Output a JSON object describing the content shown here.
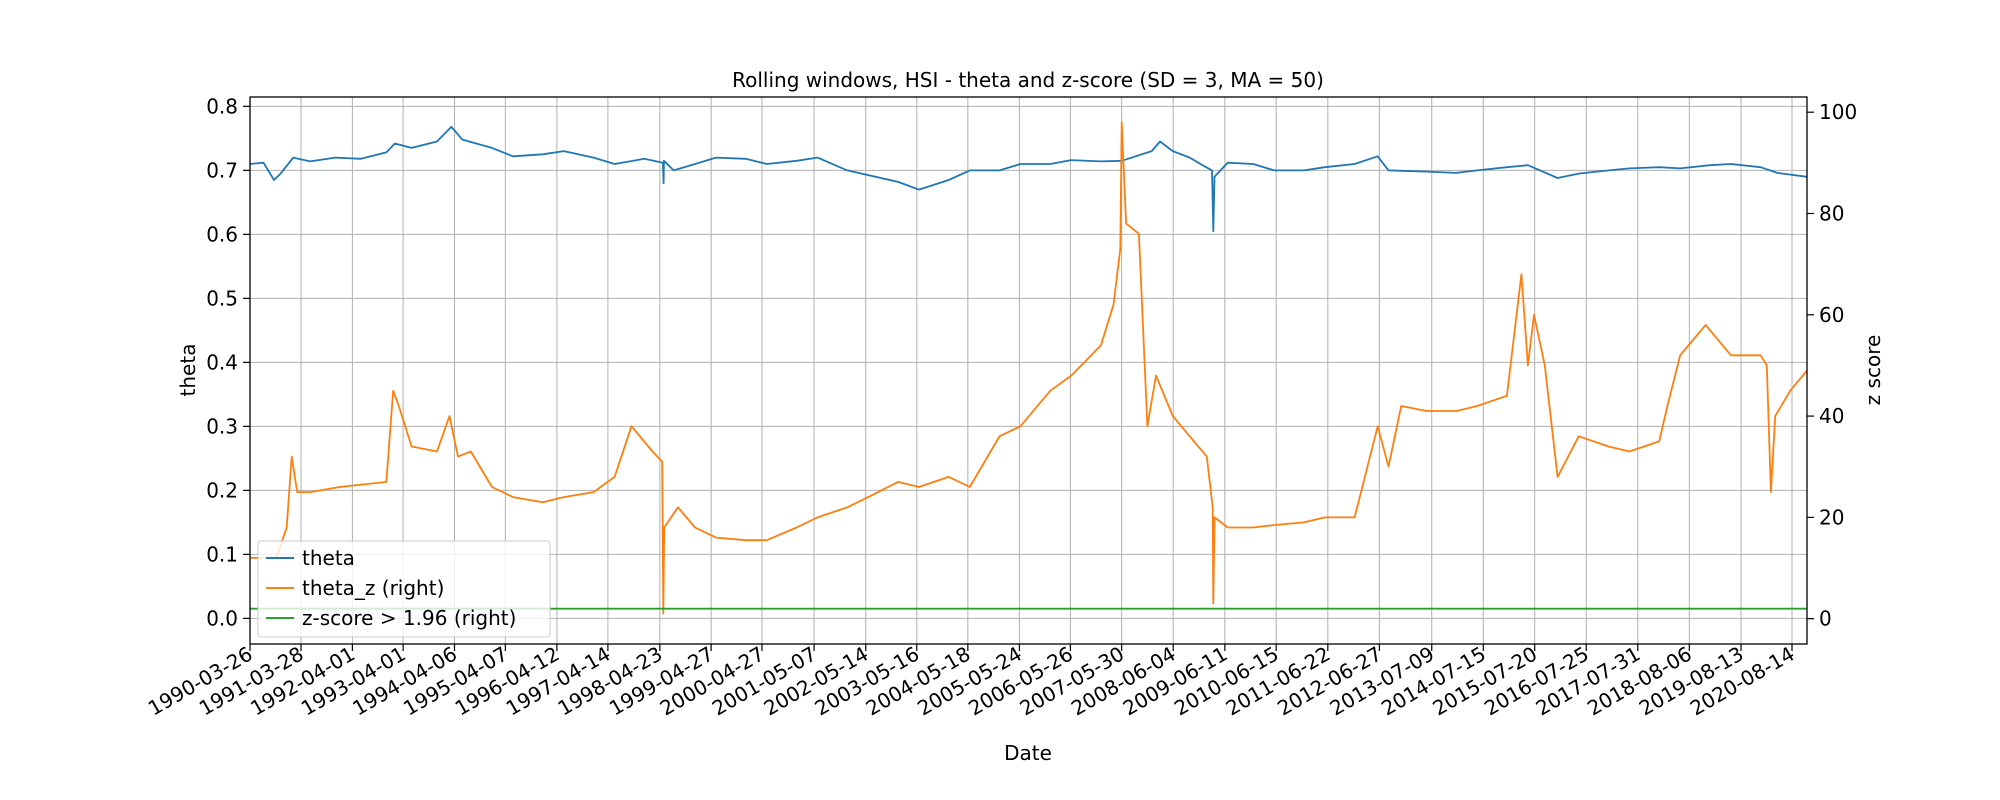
{
  "chart_data": {
    "type": "line",
    "title": "Rolling windows, HSI - theta and z-score (SD = 3, MA = 50)",
    "xlabel": "Date",
    "ylabel": "theta",
    "y2label": "z score",
    "xlim": [
      "1990-03-26",
      "2020-11-30"
    ],
    "ylim": [
      -0.04,
      0.8146
    ],
    "y2lim": [
      -5,
      103
    ],
    "yticks": [
      "0.0",
      "0.1",
      "0.2",
      "0.3",
      "0.4",
      "0.5",
      "0.6",
      "0.7",
      "0.8"
    ],
    "y2ticks": [
      "0",
      "20",
      "40",
      "60",
      "80",
      "100"
    ],
    "xticks": [
      "1990-03-26",
      "1991-03-28",
      "1992-04-01",
      "1993-04-01",
      "1994-04-06",
      "1995-04-07",
      "1996-04-12",
      "1997-04-14",
      "1998-04-23",
      "1999-04-27",
      "2000-04-27",
      "2001-05-07",
      "2002-05-14",
      "2003-05-16",
      "2004-05-18",
      "2005-05-24",
      "2006-05-26",
      "2007-05-30",
      "2008-06-04",
      "2009-06-11",
      "2010-06-15",
      "2011-06-22",
      "2012-06-27",
      "2013-07-09",
      "2014-07-15",
      "2015-07-20",
      "2016-07-25",
      "2017-07-31",
      "2018-08-06",
      "2019-08-13",
      "2020-08-14"
    ],
    "grid": true,
    "legend_position": "lower-left",
    "series": [
      {
        "name": "theta",
        "axis": "left",
        "color": "#1f77b4",
        "points": [
          [
            "1990-03-26",
            0.71
          ],
          [
            "1990-07-01",
            0.712
          ],
          [
            "1990-09-15",
            0.685
          ],
          [
            "1990-11-01",
            0.695
          ],
          [
            "1991-02-01",
            0.72
          ],
          [
            "1991-06-01",
            0.714
          ],
          [
            "1991-12-01",
            0.72
          ],
          [
            "1992-06-01",
            0.718
          ],
          [
            "1992-12-01",
            0.728
          ],
          [
            "1993-02-01",
            0.742
          ],
          [
            "1993-06-01",
            0.735
          ],
          [
            "1993-12-01",
            0.745
          ],
          [
            "1994-03-15",
            0.768
          ],
          [
            "1994-06-01",
            0.748
          ],
          [
            "1995-01-01",
            0.735
          ],
          [
            "1995-06-01",
            0.722
          ],
          [
            "1996-01-01",
            0.725
          ],
          [
            "1996-06-01",
            0.73
          ],
          [
            "1997-01-01",
            0.72
          ],
          [
            "1997-06-01",
            0.71
          ],
          [
            "1998-01-01",
            0.718
          ],
          [
            "1998-05-15",
            0.712
          ],
          [
            "1998-05-20",
            0.68
          ],
          [
            "1998-05-22",
            0.715
          ],
          [
            "1998-08-01",
            0.7
          ],
          [
            "1999-01-01",
            0.71
          ],
          [
            "1999-06-01",
            0.72
          ],
          [
            "2000-01-01",
            0.718
          ],
          [
            "2000-06-01",
            0.71
          ],
          [
            "2001-01-01",
            0.715
          ],
          [
            "2001-06-01",
            0.72
          ],
          [
            "2002-01-01",
            0.7
          ],
          [
            "2003-01-01",
            0.682
          ],
          [
            "2003-06-01",
            0.67
          ],
          [
            "2004-01-01",
            0.685
          ],
          [
            "2004-06-01",
            0.7
          ],
          [
            "2005-01-01",
            0.7
          ],
          [
            "2005-06-01",
            0.71
          ],
          [
            "2006-01-01",
            0.71
          ],
          [
            "2006-06-01",
            0.716
          ],
          [
            "2007-01-01",
            0.714
          ],
          [
            "2007-06-01",
            0.715
          ],
          [
            "2008-01-01",
            0.73
          ],
          [
            "2008-03-01",
            0.745
          ],
          [
            "2008-06-01",
            0.73
          ],
          [
            "2008-10-01",
            0.72
          ],
          [
            "2009-01-01",
            0.708
          ],
          [
            "2009-03-10",
            0.7
          ],
          [
            "2009-03-20",
            0.605
          ],
          [
            "2009-03-28",
            0.69
          ],
          [
            "2009-07-01",
            0.712
          ],
          [
            "2010-01-01",
            0.71
          ],
          [
            "2010-06-01",
            0.7
          ],
          [
            "2011-01-01",
            0.7
          ],
          [
            "2011-06-01",
            0.705
          ],
          [
            "2012-01-01",
            0.71
          ],
          [
            "2012-06-15",
            0.722
          ],
          [
            "2012-09-01",
            0.7
          ],
          [
            "2013-06-01",
            0.698
          ],
          [
            "2014-01-01",
            0.696
          ],
          [
            "2014-06-01",
            0.7
          ],
          [
            "2015-01-01",
            0.705
          ],
          [
            "2015-06-01",
            0.708
          ],
          [
            "2016-01-01",
            0.688
          ],
          [
            "2016-06-01",
            0.695
          ],
          [
            "2017-01-01",
            0.7
          ],
          [
            "2017-06-01",
            0.703
          ],
          [
            "2018-01-01",
            0.705
          ],
          [
            "2018-06-01",
            0.703
          ],
          [
            "2019-01-01",
            0.708
          ],
          [
            "2019-06-01",
            0.71
          ],
          [
            "2020-01-01",
            0.705
          ],
          [
            "2020-05-01",
            0.696
          ],
          [
            "2020-11-30",
            0.69
          ]
        ]
      },
      {
        "name": "theta_z (right)",
        "axis": "right",
        "color": "#ff7f0e",
        "points": [
          [
            "1990-03-26",
            12
          ],
          [
            "1990-10-01",
            12
          ],
          [
            "1990-12-15",
            18
          ],
          [
            "1991-01-20",
            32
          ],
          [
            "1991-03-01",
            25
          ],
          [
            "1991-06-01",
            25
          ],
          [
            "1992-01-01",
            26
          ],
          [
            "1992-12-01",
            27
          ],
          [
            "1993-01-20",
            45
          ],
          [
            "1993-03-01",
            42
          ],
          [
            "1993-06-01",
            34
          ],
          [
            "1993-12-01",
            33
          ],
          [
            "1994-03-01",
            40
          ],
          [
            "1994-05-01",
            32
          ],
          [
            "1994-08-01",
            33
          ],
          [
            "1995-01-01",
            26
          ],
          [
            "1995-06-01",
            24
          ],
          [
            "1996-01-01",
            23
          ],
          [
            "1996-06-01",
            24
          ],
          [
            "1997-01-01",
            25
          ],
          [
            "1997-06-01",
            28
          ],
          [
            "1997-10-01",
            38
          ],
          [
            "1998-03-01",
            33
          ],
          [
            "1998-05-10",
            31
          ],
          [
            "1998-05-18",
            1
          ],
          [
            "1998-05-24",
            18
          ],
          [
            "1998-09-01",
            22
          ],
          [
            "1999-01-01",
            18
          ],
          [
            "1999-06-01",
            16
          ],
          [
            "2000-01-01",
            15.5
          ],
          [
            "2000-06-01",
            15.5
          ],
          [
            "2001-01-01",
            18
          ],
          [
            "2001-06-01",
            20
          ],
          [
            "2002-01-01",
            22
          ],
          [
            "2002-06-01",
            24
          ],
          [
            "2003-01-01",
            27
          ],
          [
            "2003-06-01",
            26
          ],
          [
            "2004-01-01",
            28
          ],
          [
            "2004-06-01",
            26
          ],
          [
            "2005-01-01",
            36
          ],
          [
            "2005-06-01",
            38
          ],
          [
            "2006-01-01",
            45
          ],
          [
            "2006-06-01",
            48
          ],
          [
            "2007-01-01",
            54
          ],
          [
            "2007-04-01",
            62
          ],
          [
            "2007-05-20",
            73
          ],
          [
            "2007-05-30",
            98
          ],
          [
            "2007-07-01",
            78
          ],
          [
            "2007-10-01",
            76
          ],
          [
            "2007-12-01",
            38
          ],
          [
            "2008-02-01",
            48
          ],
          [
            "2008-06-01",
            40
          ],
          [
            "2008-10-01",
            36
          ],
          [
            "2009-02-01",
            32
          ],
          [
            "2009-03-15",
            22
          ],
          [
            "2009-03-20",
            3
          ],
          [
            "2009-03-28",
            20
          ],
          [
            "2009-07-01",
            18
          ],
          [
            "2010-01-01",
            18
          ],
          [
            "2010-06-01",
            18.5
          ],
          [
            "2011-01-01",
            19
          ],
          [
            "2011-06-01",
            20
          ],
          [
            "2012-01-01",
            20
          ],
          [
            "2012-06-15",
            38
          ],
          [
            "2012-09-01",
            30
          ],
          [
            "2012-12-01",
            42
          ],
          [
            "2013-06-01",
            41
          ],
          [
            "2014-01-01",
            41
          ],
          [
            "2014-06-01",
            42
          ],
          [
            "2015-01-01",
            44
          ],
          [
            "2015-04-15",
            68
          ],
          [
            "2015-06-01",
            50
          ],
          [
            "2015-07-15",
            60
          ],
          [
            "2015-10-01",
            50
          ],
          [
            "2016-01-01",
            28
          ],
          [
            "2016-06-01",
            36
          ],
          [
            "2017-01-01",
            34
          ],
          [
            "2017-06-01",
            33
          ],
          [
            "2018-01-01",
            35
          ],
          [
            "2018-03-01",
            42
          ],
          [
            "2018-06-01",
            52
          ],
          [
            "2018-12-01",
            58
          ],
          [
            "2019-06-01",
            52
          ],
          [
            "2020-01-01",
            52
          ],
          [
            "2020-02-15",
            50
          ],
          [
            "2020-03-15",
            25
          ],
          [
            "2020-04-15",
            40
          ],
          [
            "2020-08-01",
            45
          ],
          [
            "2020-11-30",
            49
          ]
        ]
      },
      {
        "name": "z-score > 1.96 (right)",
        "axis": "right",
        "color": "#2ca02c",
        "points": [
          [
            "1990-03-26",
            1.96
          ],
          [
            "2020-11-30",
            1.96
          ]
        ]
      }
    ]
  }
}
